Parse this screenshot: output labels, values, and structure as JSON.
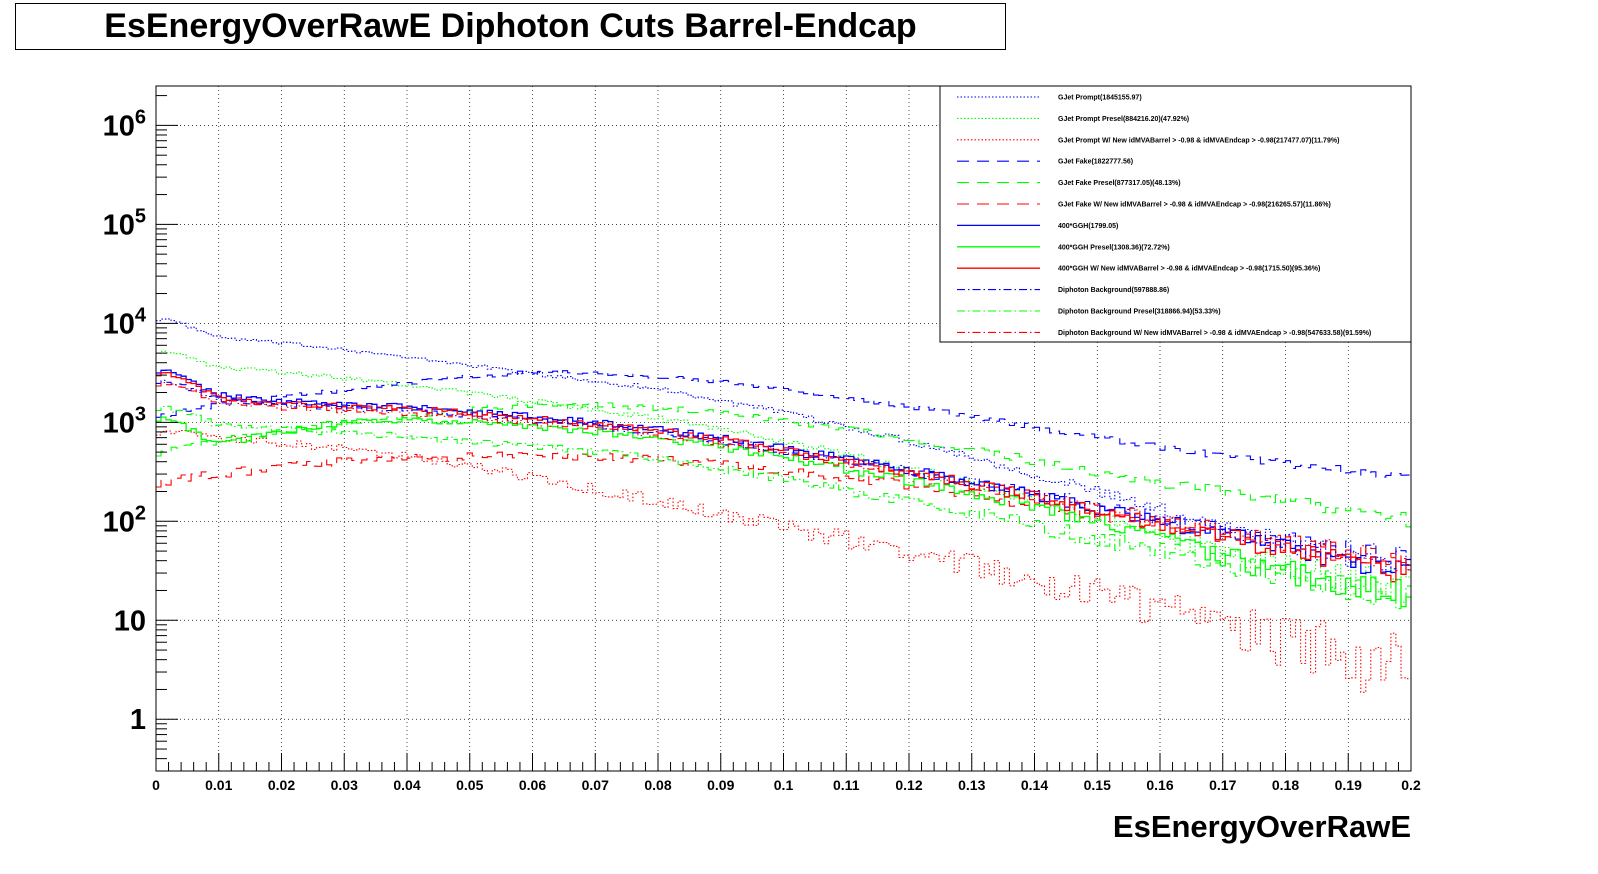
{
  "chart_data": {
    "type": "line",
    "title": "EsEnergyOverRawE Diphoton Cuts Barrel-Endcap",
    "xlabel": "EsEnergyOverRawE",
    "ylabel": "",
    "xlim": [
      0,
      0.2
    ],
    "ylim": [
      0.3,
      2500000
    ],
    "yscale": "log",
    "grid": true,
    "legend_position": "top-right",
    "x_ticks": [
      0,
      0.01,
      0.02,
      0.03,
      0.04,
      0.05,
      0.06,
      0.07,
      0.08,
      0.09,
      0.1,
      0.11,
      0.12,
      0.13,
      0.14,
      0.15,
      0.16,
      0.17,
      0.18,
      0.19,
      0.2
    ],
    "x_tick_labels": [
      "0",
      "0.01",
      "0.02",
      "0.03",
      "0.04",
      "0.05",
      "0.06",
      "0.07",
      "0.08",
      "0.09",
      "0.1",
      "0.11",
      "0.12",
      "0.13",
      "0.14",
      "0.15",
      "0.16",
      "0.17",
      "0.18",
      "0.19",
      "0.2"
    ],
    "y_ticks": [
      {
        "value": 1000000,
        "base": "10",
        "exp": "6"
      },
      {
        "value": 100000,
        "base": "10",
        "exp": "5"
      },
      {
        "value": 10000,
        "base": "10",
        "exp": "4"
      },
      {
        "value": 1000,
        "base": "10",
        "exp": "3"
      },
      {
        "value": 100,
        "base": "10",
        "exp": "2"
      },
      {
        "value": 10,
        "base": "10",
        "exp": ""
      },
      {
        "value": 1,
        "base": "1",
        "exp": ""
      }
    ],
    "series": [
      {
        "name": "GJet Prompt(1845155.97)",
        "color": "#0000ff",
        "style": "dotted",
        "x": [
          0.002,
          0.01,
          0.02,
          0.03,
          0.04,
          0.05,
          0.06,
          0.07,
          0.08,
          0.09,
          0.1,
          0.11,
          0.12,
          0.13,
          0.14,
          0.15,
          0.16,
          0.17,
          0.18,
          0.19,
          0.2
        ],
        "y": [
          11000,
          7200,
          6300,
          5500,
          4500,
          3800,
          3100,
          2600,
          2200,
          1650,
          1250,
          900,
          650,
          450,
          300,
          200,
          130,
          90,
          60,
          45,
          35
        ]
      },
      {
        "name": "GJet Prompt Presel(884216.20)(47.92%)",
        "color": "#00ff00",
        "style": "dotted",
        "x": [
          0.002,
          0.01,
          0.02,
          0.03,
          0.04,
          0.05,
          0.06,
          0.07,
          0.08,
          0.09,
          0.1,
          0.11,
          0.12,
          0.13,
          0.14,
          0.15,
          0.16,
          0.17,
          0.18,
          0.19,
          0.2
        ],
        "y": [
          5200,
          3600,
          3200,
          2800,
          2400,
          2000,
          1650,
          1350,
          1100,
          850,
          650,
          470,
          340,
          240,
          160,
          110,
          75,
          50,
          35,
          27,
          22
        ]
      },
      {
        "name": "GJet Prompt W/ New idMVABarrel > -0.98 & idMVAEndcap > -0.98(217477.07)(11.79%)",
        "color": "#ff0000",
        "style": "dotted",
        "x": [
          0.002,
          0.01,
          0.02,
          0.03,
          0.04,
          0.05,
          0.06,
          0.07,
          0.08,
          0.09,
          0.1,
          0.11,
          0.12,
          0.13,
          0.14,
          0.15,
          0.16,
          0.17,
          0.18,
          0.19,
          0.2
        ],
        "y": [
          800,
          700,
          620,
          540,
          450,
          360,
          280,
          210,
          160,
          120,
          90,
          65,
          48,
          35,
          25,
          18,
          13,
          9,
          6,
          4,
          4
        ]
      },
      {
        "name": "GJet Fake(1822777.56)",
        "color": "#0000ff",
        "style": "dashed",
        "x": [
          0.002,
          0.01,
          0.02,
          0.03,
          0.04,
          0.05,
          0.06,
          0.07,
          0.08,
          0.09,
          0.1,
          0.11,
          0.12,
          0.13,
          0.14,
          0.15,
          0.16,
          0.17,
          0.18,
          0.19,
          0.2
        ],
        "y": [
          1200,
          1500,
          1800,
          2100,
          2500,
          2900,
          3200,
          3200,
          2900,
          2600,
          2200,
          1800,
          1450,
          1150,
          900,
          700,
          560,
          450,
          380,
          320,
          280
        ]
      },
      {
        "name": "GJet Fake Presel(877317.05)(48.13%)",
        "color": "#00ff00",
        "style": "dashed",
        "x": [
          0.002,
          0.01,
          0.02,
          0.03,
          0.04,
          0.05,
          0.06,
          0.07,
          0.08,
          0.09,
          0.1,
          0.11,
          0.12,
          0.13,
          0.14,
          0.15,
          0.16,
          0.17,
          0.18,
          0.19,
          0.2
        ],
        "y": [
          500,
          650,
          800,
          950,
          1150,
          1350,
          1500,
          1500,
          1400,
          1250,
          1050,
          850,
          680,
          530,
          410,
          320,
          250,
          200,
          160,
          130,
          100
        ]
      },
      {
        "name": "GJet Fake W/ New idMVABarrel > -0.98 & idMVAEndcap > -0.98(216265.57)(11.86%)",
        "color": "#ff0000",
        "style": "dashed",
        "x": [
          0.002,
          0.01,
          0.02,
          0.03,
          0.04,
          0.05,
          0.06,
          0.07,
          0.08,
          0.09,
          0.1,
          0.11,
          0.12,
          0.13,
          0.14,
          0.15,
          0.16,
          0.17,
          0.18,
          0.19,
          0.2
        ],
        "y": [
          250,
          300,
          350,
          400,
          430,
          450,
          460,
          450,
          420,
          380,
          330,
          280,
          230,
          185,
          150,
          120,
          95,
          75,
          60,
          50,
          40
        ]
      },
      {
        "name": "400*GGH(1799.05)",
        "color": "#0000ff",
        "style": "solid",
        "x": [
          0.002,
          0.01,
          0.02,
          0.03,
          0.04,
          0.05,
          0.06,
          0.07,
          0.08,
          0.09,
          0.1,
          0.11,
          0.12,
          0.13,
          0.14,
          0.15,
          0.16,
          0.17,
          0.18,
          0.19,
          0.2
        ],
        "y": [
          3300,
          1900,
          1650,
          1550,
          1450,
          1300,
          1150,
          1000,
          850,
          700,
          550,
          430,
          330,
          250,
          185,
          135,
          100,
          75,
          55,
          40,
          30
        ]
      },
      {
        "name": "400*GGH Presel(1308.36)(72.72%)",
        "color": "#00ff00",
        "style": "solid",
        "x": [
          0.002,
          0.01,
          0.02,
          0.03,
          0.04,
          0.05,
          0.06,
          0.07,
          0.08,
          0.09,
          0.1,
          0.11,
          0.12,
          0.13,
          0.14,
          0.15,
          0.16,
          0.17,
          0.18,
          0.19,
          0.2
        ],
        "y": [
          1100,
          600,
          800,
          1000,
          1050,
          1000,
          900,
          800,
          680,
          560,
          440,
          340,
          260,
          190,
          140,
          100,
          70,
          45,
          30,
          22,
          18
        ]
      },
      {
        "name": "400*GGH W/ New idMVABarrel > -0.98 & idMVAEndcap > -0.98(1715.50)(95.36%)",
        "color": "#ff0000",
        "style": "solid",
        "x": [
          0.002,
          0.01,
          0.02,
          0.03,
          0.04,
          0.05,
          0.06,
          0.07,
          0.08,
          0.09,
          0.1,
          0.11,
          0.12,
          0.13,
          0.14,
          0.15,
          0.16,
          0.17,
          0.18,
          0.19,
          0.2
        ],
        "y": [
          3100,
          1800,
          1550,
          1450,
          1380,
          1250,
          1100,
          950,
          820,
          670,
          530,
          410,
          315,
          240,
          175,
          128,
          95,
          70,
          52,
          38,
          28
        ]
      },
      {
        "name": "Diphoton Background(597888.86)",
        "color": "#0000ff",
        "style": "dashdot",
        "x": [
          0.002,
          0.01,
          0.02,
          0.03,
          0.04,
          0.05,
          0.06,
          0.07,
          0.08,
          0.09,
          0.1,
          0.11,
          0.12,
          0.13,
          0.14,
          0.15,
          0.16,
          0.17,
          0.18,
          0.19,
          0.2
        ],
        "y": [
          2600,
          1700,
          1500,
          1400,
          1300,
          1180,
          1050,
          920,
          790,
          650,
          520,
          410,
          320,
          250,
          190,
          145,
          110,
          85,
          65,
          50,
          40
        ]
      },
      {
        "name": "Diphoton Background Presel(318866.94)(53.33%)",
        "color": "#00ff00",
        "style": "dashdot",
        "x": [
          0.002,
          0.01,
          0.02,
          0.03,
          0.04,
          0.05,
          0.06,
          0.07,
          0.08,
          0.09,
          0.1,
          0.11,
          0.12,
          0.13,
          0.14,
          0.15,
          0.16,
          0.17,
          0.18,
          0.19,
          0.2
        ],
        "y": [
          1400,
          950,
          850,
          780,
          720,
          650,
          580,
          500,
          420,
          340,
          270,
          210,
          160,
          120,
          90,
          66,
          50,
          38,
          29,
          22,
          18
        ]
      },
      {
        "name": "Diphoton Background W/ New idMVABarrel > -0.98 & idMVAEndcap > -0.98(547633.58)(91.59%)",
        "color": "#ff0000",
        "style": "dashdot",
        "x": [
          0.002,
          0.01,
          0.02,
          0.03,
          0.04,
          0.05,
          0.06,
          0.07,
          0.08,
          0.09,
          0.1,
          0.11,
          0.12,
          0.13,
          0.14,
          0.15,
          0.16,
          0.17,
          0.18,
          0.19,
          0.2
        ],
        "y": [
          2450,
          1600,
          1420,
          1320,
          1230,
          1120,
          1000,
          870,
          750,
          620,
          500,
          390,
          305,
          235,
          180,
          138,
          105,
          80,
          62,
          48,
          38
        ]
      }
    ]
  }
}
